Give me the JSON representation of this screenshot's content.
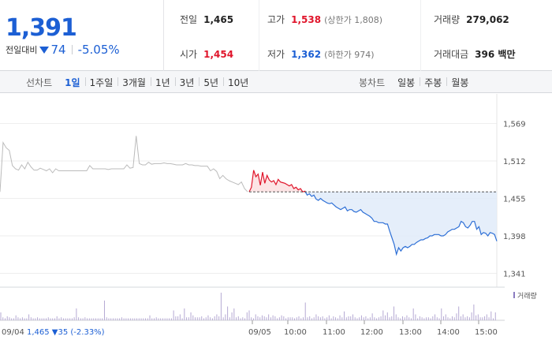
{
  "price": {
    "current": "1,391",
    "diff_label": "전일대비",
    "diff_value": "74",
    "diff_rate": "-5.05%"
  },
  "stats": {
    "prev_close": {
      "label": "전일",
      "value": "1,465"
    },
    "high": {
      "label": "고가",
      "value": "1,538",
      "sub": "(상한가 1,808)"
    },
    "volume": {
      "label": "거래량",
      "value": "279,062"
    },
    "open": {
      "label": "시가",
      "value": "1,454"
    },
    "low": {
      "label": "저가",
      "value": "1,362",
      "sub": "(하한가 974)"
    },
    "trade_amount": {
      "label": "거래대금",
      "value": "396 백만"
    }
  },
  "toolbar": {
    "line_title": "선차트",
    "line_periods": [
      "1일",
      "1주일",
      "3개월",
      "1년",
      "3년",
      "5년",
      "10년"
    ],
    "line_active": 0,
    "candle_title": "봉차트",
    "candle_periods": [
      "일봉",
      "주봉",
      "월봉"
    ]
  },
  "chart_data": {
    "type": "line",
    "ylim": [
      1320,
      1590
    ],
    "y_ticks": [
      "1,569",
      "1,512",
      "1,455",
      "1,398",
      "1,341"
    ],
    "y_tick_values": [
      1569,
      1512,
      1455,
      1398,
      1341
    ],
    "reference_price": 1465,
    "x_labels": [
      "09/05",
      "10:00",
      "11:00",
      "12:00",
      "13:00",
      "14:00",
      "15:00"
    ],
    "prev_day_label": "09/04",
    "prev_day_summary": "1,465 ▼35 (-2.33%)",
    "volume_legend": "거래량",
    "colors": {
      "prev_day": "#bbbbbb",
      "up": "#e0152b",
      "down": "#2d6fd6",
      "up_fill": "#fbdfe0",
      "down_fill": "#e1ebf9",
      "volume": "#b5a9d3",
      "ref_line": "#3a3a3a"
    },
    "prev_day_series": [
      1465,
      1540,
      1532,
      1528,
      1505,
      1500,
      1498,
      1506,
      1500,
      1510,
      1503,
      1498,
      1498,
      1501,
      1499,
      1497,
      1500,
      1494,
      1500,
      1497,
      1497,
      1497,
      1497,
      1497,
      1497,
      1497,
      1497,
      1497,
      1497,
      1505,
      1500,
      1500,
      1500,
      1500,
      1500,
      1499,
      1500,
      1500,
      1500,
      1500,
      1500,
      1506,
      1501,
      1502,
      1550,
      1508,
      1506,
      1506,
      1510,
      1507,
      1508,
      1508,
      1508,
      1509,
      1508,
      1508,
      1507,
      1506,
      1506,
      1506,
      1508,
      1506,
      1506,
      1505,
      1505,
      1504,
      1504,
      1504,
      1497,
      1500,
      1496,
      1485,
      1490,
      1485,
      1482,
      1480,
      1478,
      1476,
      1480,
      1470,
      1465
    ],
    "today_series": [
      1465,
      1472,
      1498,
      1488,
      1492,
      1475,
      1495,
      1478,
      1490,
      1483,
      1480,
      1482,
      1476,
      1484,
      1480,
      1479,
      1478,
      1476,
      1474,
      1476,
      1470,
      1472,
      1468,
      1470,
      1465,
      1466,
      1460,
      1462,
      1458,
      1460,
      1454,
      1452,
      1455,
      1452,
      1450,
      1448,
      1447,
      1448,
      1445,
      1442,
      1440,
      1438,
      1440,
      1442,
      1436,
      1438,
      1438,
      1435,
      1434,
      1436,
      1438,
      1434,
      1432,
      1430,
      1428,
      1425,
      1420,
      1420,
      1418,
      1418,
      1418,
      1416,
      1416,
      1405,
      1395,
      1385,
      1370,
      1380,
      1375,
      1380,
      1382,
      1380,
      1382,
      1385,
      1385,
      1388,
      1390,
      1392,
      1392,
      1394,
      1395,
      1398,
      1398,
      1400,
      1400,
      1400,
      1398,
      1398,
      1400,
      1404,
      1406,
      1408,
      1408,
      1410,
      1412,
      1420,
      1418,
      1412,
      1410,
      1414,
      1420,
      1420,
      1408,
      1412,
      1400,
      1403,
      1402,
      1398,
      1403,
      1402,
      1400,
      1390
    ],
    "volume_series": [
      8,
      3,
      2,
      4,
      3,
      2,
      2,
      5,
      3,
      2,
      3,
      2,
      2,
      6,
      3,
      2,
      2,
      3,
      2,
      2,
      2,
      2,
      3,
      2,
      2,
      2,
      4,
      2,
      3,
      2,
      2,
      2,
      2,
      2,
      3,
      12,
      3,
      2,
      2,
      3,
      2,
      2,
      2,
      2,
      2,
      2,
      2,
      2,
      20,
      3,
      2,
      2,
      2,
      2,
      2,
      2,
      3,
      2,
      2,
      2,
      2,
      2,
      2,
      2,
      2,
      2,
      2,
      2,
      2,
      5,
      2,
      2,
      3,
      2,
      2,
      2,
      2,
      2,
      2,
      2,
      10,
      4,
      4,
      6,
      2,
      12,
      3,
      3,
      8,
      5,
      3,
      3,
      3,
      4,
      2,
      3,
      5,
      3,
      2,
      4,
      6,
      4,
      28,
      3,
      6,
      14,
      3,
      8,
      12,
      3,
      4,
      2,
      3,
      2,
      8,
      10,
      3,
      2,
      6,
      4,
      3,
      5,
      4,
      3,
      6,
      3,
      5,
      4,
      2,
      3,
      5,
      4,
      2,
      3,
      3,
      3,
      2,
      3,
      4,
      2,
      3,
      18,
      3,
      4,
      2,
      3,
      6,
      4,
      3,
      4,
      2,
      3,
      5,
      2,
      4,
      3,
      2,
      5,
      3,
      9,
      3,
      4,
      4,
      6,
      3,
      2,
      3,
      5,
      3,
      4,
      2,
      3,
      7,
      3,
      2,
      3,
      4,
      10,
      5,
      8,
      3,
      4,
      14,
      6,
      3,
      2,
      4,
      3,
      5,
      3,
      2,
      12,
      6,
      2,
      4,
      3,
      2,
      3,
      3,
      2,
      4,
      6,
      3,
      2,
      12,
      4,
      6,
      3,
      2,
      4,
      3,
      7,
      14,
      4,
      6,
      3,
      4,
      3,
      8,
      16,
      5,
      6,
      3,
      3,
      4,
      6,
      3,
      9,
      2,
      8
    ]
  }
}
